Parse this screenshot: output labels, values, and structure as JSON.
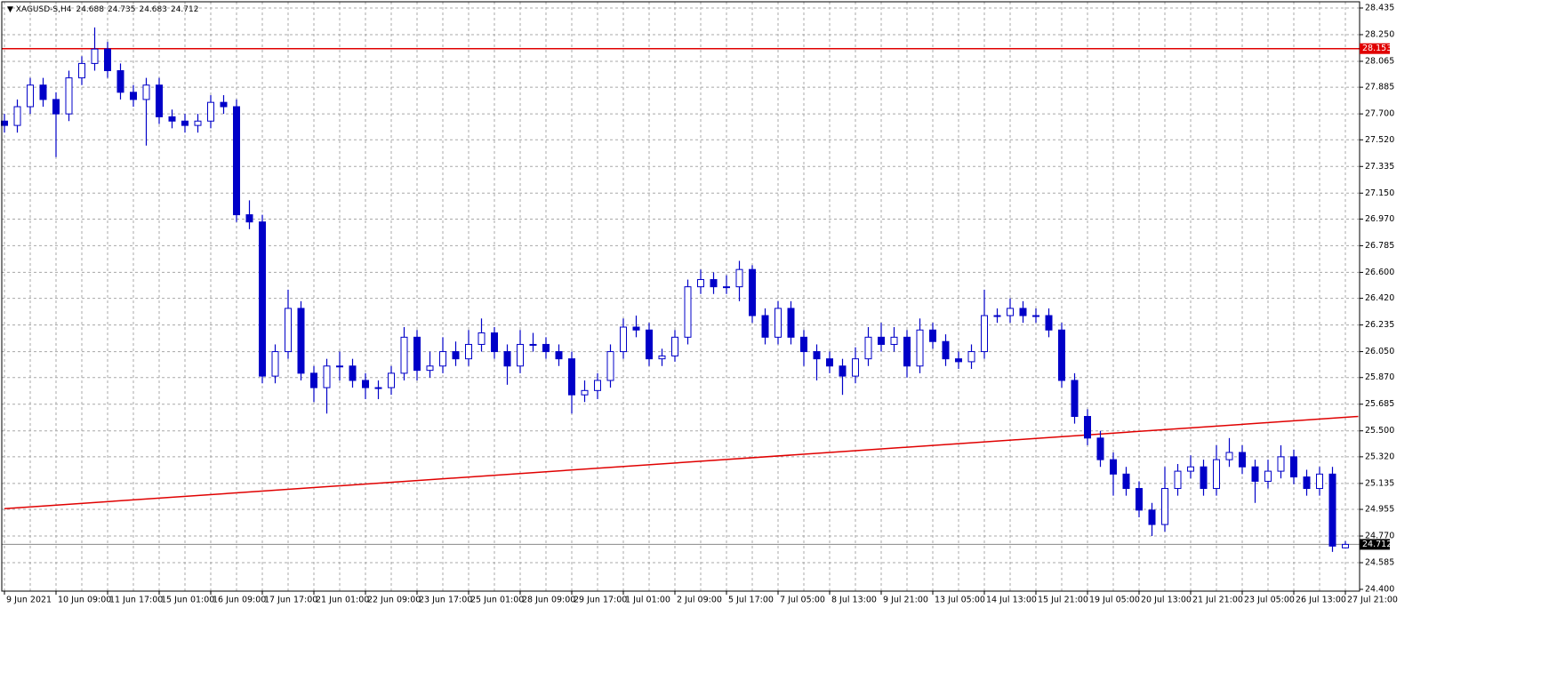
{
  "chart_data": {
    "type": "candlestick",
    "title": "XAGUSD-S,H4",
    "color": "#0000c8",
    "level": 28.153,
    "level_color": "#e00000",
    "trendline": {
      "x": [
        0,
        105
      ],
      "y": [
        24.96,
        25.6
      ],
      "color": "#e00000"
    },
    "grid": true,
    "categories": [
      "9 Jun 2021",
      null,
      null,
      null,
      "10 Jun 09:00",
      null,
      null,
      null,
      "11 Jun 17:00",
      null,
      null,
      null,
      "15 Jun 01:00",
      null,
      null,
      null,
      "16 Jun 09:00",
      null,
      null,
      null,
      "17 Jun 17:00",
      null,
      null,
      null,
      "21 Jun 01:00",
      null,
      null,
      null,
      "22 Jun 09:00",
      null,
      null,
      null,
      "23 Jun 17:00",
      null,
      null,
      null,
      "25 Jun 01:00",
      null,
      null,
      null,
      "28 Jun 09:00",
      null,
      null,
      null,
      "29 Jun 17:00",
      null,
      null,
      null,
      "1 Jul 01:00",
      null,
      null,
      null,
      "2 Jul 09:00",
      null,
      null,
      null,
      "5 Jul 17:00",
      null,
      null,
      null,
      "7 Jul 05:00",
      null,
      null,
      null,
      "8 Jul 13:00",
      null,
      null,
      null,
      "9 Jul 21:00",
      null,
      null,
      null,
      "13 Jul 05:00",
      null,
      null,
      null,
      "14 Jul 13:00",
      null,
      null,
      null,
      "15 Jul 21:00",
      null,
      null,
      null,
      "19 Jul 05:00",
      null,
      null,
      null,
      "20 Jul 13:00",
      null,
      null,
      null,
      "21 Jul 21:00",
      null,
      null,
      null,
      "23 Jul 05:00",
      null,
      null,
      null,
      "26 Jul 13:00",
      null,
      null,
      null,
      "27 Jul 21:00"
    ],
    "open": [
      27.65,
      27.62,
      27.75,
      27.9,
      27.8,
      27.7,
      27.95,
      28.05,
      28.15,
      28.0,
      27.85,
      27.8,
      27.9,
      27.68,
      27.65,
      27.62,
      27.65,
      27.78,
      27.75,
      27.0,
      26.95,
      25.88,
      26.05,
      26.35,
      25.9,
      25.8,
      25.95,
      25.95,
      25.85,
      25.8,
      25.8,
      25.9,
      26.15,
      25.92,
      25.95,
      26.05,
      26.0,
      26.1,
      26.18,
      26.05,
      25.95,
      26.1,
      26.1,
      26.05,
      26.0,
      25.75,
      25.78,
      25.85,
      26.05,
      26.22,
      26.2,
      26.0,
      26.02,
      26.15,
      26.5,
      26.55,
      26.5,
      26.5,
      26.62,
      26.3,
      26.15,
      26.35,
      26.15,
      26.05,
      26.0,
      25.95,
      25.88,
      26.0,
      26.15,
      26.1,
      26.15,
      25.95,
      26.2,
      26.12,
      26.0,
      25.98,
      26.05,
      26.3,
      26.3,
      26.35,
      26.3,
      26.3,
      26.2,
      25.85,
      25.6,
      25.45,
      25.3,
      25.2,
      25.1,
      24.95,
      24.85,
      25.1,
      25.22,
      25.25,
      25.1,
      25.3,
      25.35,
      25.25,
      25.15,
      25.22,
      25.32,
      25.18,
      25.1,
      25.2,
      24.688
    ],
    "high": [
      27.7,
      27.8,
      27.95,
      27.95,
      27.85,
      28.0,
      28.1,
      28.3,
      28.2,
      28.05,
      27.9,
      27.95,
      27.95,
      27.73,
      27.7,
      27.7,
      27.83,
      27.83,
      27.8,
      27.1,
      27.0,
      26.1,
      26.48,
      26.4,
      25.95,
      26.0,
      26.05,
      26.0,
      25.9,
      25.85,
      25.95,
      26.22,
      26.2,
      26.05,
      26.15,
      26.12,
      26.2,
      26.28,
      26.22,
      26.1,
      26.2,
      26.18,
      26.15,
      26.1,
      26.05,
      25.85,
      25.9,
      26.1,
      26.28,
      26.3,
      26.25,
      26.07,
      26.2,
      26.55,
      26.62,
      26.6,
      26.58,
      26.68,
      26.65,
      26.35,
      26.4,
      26.4,
      26.2,
      26.1,
      26.05,
      26.0,
      26.08,
      26.22,
      26.25,
      26.22,
      26.2,
      26.28,
      26.25,
      26.17,
      26.05,
      26.1,
      26.48,
      26.35,
      26.42,
      26.4,
      26.35,
      26.35,
      26.25,
      25.9,
      25.65,
      25.5,
      25.35,
      25.25,
      25.15,
      25.0,
      25.25,
      25.27,
      25.33,
      25.3,
      25.4,
      25.45,
      25.4,
      25.3,
      25.3,
      25.4,
      25.37,
      25.23,
      25.25,
      25.25,
      24.735
    ],
    "low": [
      27.57,
      27.57,
      27.7,
      27.75,
      27.4,
      27.65,
      27.9,
      28.0,
      27.95,
      27.8,
      27.75,
      27.48,
      27.63,
      27.6,
      27.57,
      27.57,
      27.6,
      27.7,
      26.95,
      26.9,
      25.83,
      25.83,
      26.0,
      25.85,
      25.7,
      25.62,
      25.85,
      25.8,
      25.72,
      25.72,
      25.75,
      25.85,
      25.85,
      25.87,
      25.9,
      25.95,
      25.95,
      26.05,
      26.0,
      25.82,
      25.9,
      26.05,
      26.0,
      25.95,
      25.62,
      25.7,
      25.72,
      25.8,
      26.0,
      26.15,
      25.95,
      25.95,
      25.98,
      26.1,
      26.45,
      26.45,
      26.45,
      26.4,
      26.25,
      26.1,
      26.1,
      26.1,
      25.95,
      25.85,
      25.9,
      25.75,
      25.83,
      25.95,
      26.05,
      26.05,
      25.87,
      25.9,
      26.07,
      25.95,
      25.93,
      25.93,
      26.0,
      26.25,
      26.25,
      26.25,
      26.25,
      26.15,
      25.8,
      25.55,
      25.4,
      25.25,
      25.05,
      25.05,
      24.9,
      24.77,
      24.8,
      25.05,
      25.17,
      25.05,
      25.05,
      25.25,
      25.2,
      25.0,
      25.1,
      25.17,
      25.13,
      25.05,
      25.05,
      24.66,
      24.683
    ],
    "close": [
      27.62,
      27.75,
      27.9,
      27.8,
      27.7,
      27.95,
      28.05,
      28.15,
      28.0,
      27.85,
      27.8,
      27.9,
      27.68,
      27.65,
      27.62,
      27.65,
      27.78,
      27.75,
      27.0,
      26.95,
      25.88,
      26.05,
      26.35,
      25.9,
      25.8,
      25.95,
      25.95,
      25.85,
      25.8,
      25.8,
      25.9,
      26.15,
      25.92,
      25.95,
      26.05,
      26.0,
      26.1,
      26.18,
      26.05,
      25.95,
      26.1,
      26.1,
      26.05,
      26.0,
      25.75,
      25.78,
      25.85,
      26.05,
      26.22,
      26.2,
      26.0,
      26.02,
      26.15,
      26.5,
      26.55,
      26.5,
      26.5,
      26.62,
      26.3,
      26.15,
      26.35,
      26.15,
      26.05,
      26.0,
      25.95,
      25.88,
      26.0,
      26.15,
      26.1,
      26.15,
      25.95,
      26.2,
      26.12,
      26.0,
      25.98,
      26.05,
      26.3,
      26.3,
      26.35,
      26.3,
      26.3,
      26.2,
      25.85,
      25.6,
      25.45,
      25.3,
      25.2,
      25.1,
      24.95,
      24.85,
      25.1,
      25.22,
      25.25,
      25.1,
      25.3,
      25.35,
      25.25,
      25.15,
      25.22,
      25.32,
      25.18,
      25.1,
      25.2,
      24.7,
      24.712
    ],
    "ylim": [
      24.4,
      28.435
    ],
    "yticks": [
      28.435,
      {
        "value": 28.25,
        "label": "28.250"
      },
      28.065,
      27.885,
      {
        "value": 27.7,
        "label": "27.700"
      },
      {
        "value": 27.52,
        "label": "27.520"
      },
      27.335,
      {
        "value": 27.15,
        "label": "27.150"
      },
      {
        "value": 26.97,
        "label": "26.970"
      },
      26.785,
      {
        "value": 26.6,
        "label": "26.600"
      },
      {
        "value": 26.42,
        "label": "26.420"
      },
      26.235,
      {
        "value": 26.05,
        "label": "26.050"
      },
      {
        "value": 25.87,
        "label": "25.870"
      },
      25.685,
      {
        "value": 25.5,
        "label": "25.500"
      },
      {
        "value": 25.32,
        "label": "25.320"
      },
      25.135,
      24.955,
      {
        "value": 24.77,
        "label": "24.770"
      },
      24.585,
      {
        "value": 24.4,
        "label": "24.400"
      }
    ]
  }
}
